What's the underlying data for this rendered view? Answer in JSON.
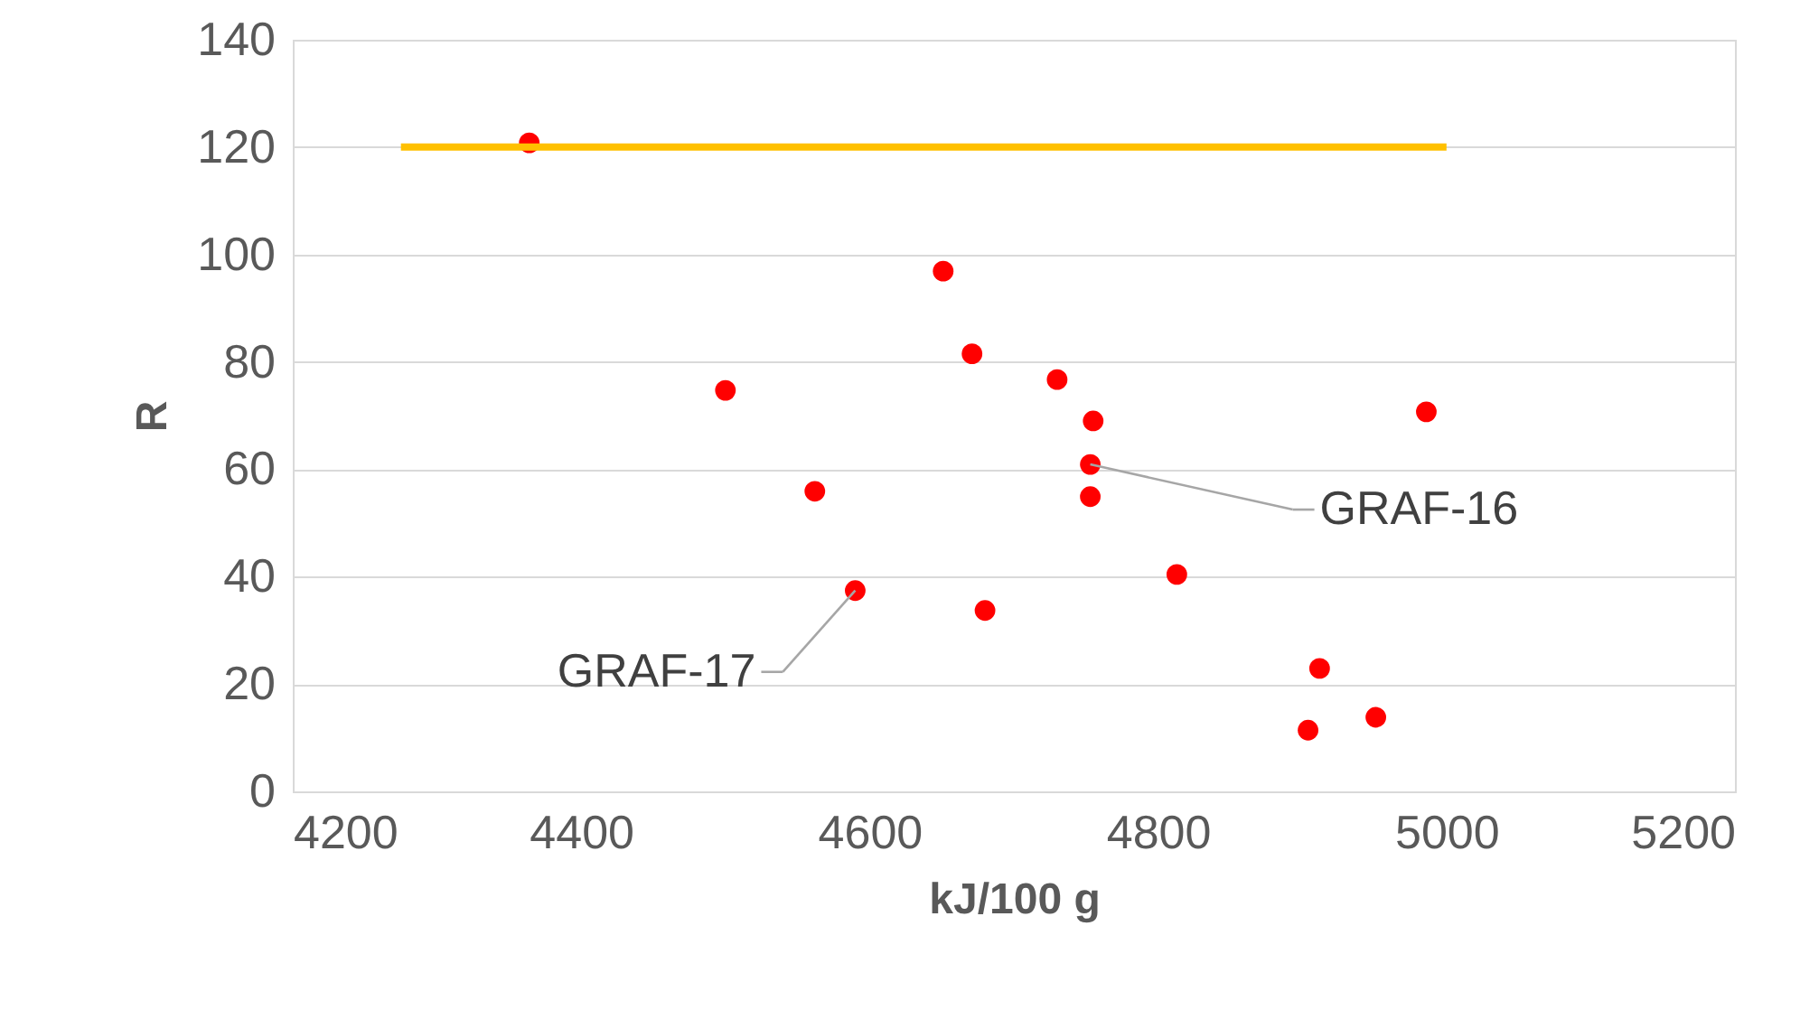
{
  "chart_data": {
    "type": "scatter",
    "xlabel": "kJ/100 g",
    "ylabel": "R",
    "x": [
      4364,
      4500,
      4562,
      4590,
      4651,
      4671,
      4680,
      4730,
      4755,
      4753,
      4753,
      4813,
      4904,
      4912,
      4951,
      4986
    ],
    "series": [
      {
        "color": "#ff0000",
        "marker": "circle",
        "values": [
          120.8,
          74.7,
          55.9,
          37.4,
          96.9,
          81.5,
          33.7,
          76.7,
          69.0,
          60.9,
          54.9,
          40.4,
          11.4,
          22.9,
          13.8,
          70.7
        ]
      },
      {
        "type": "line",
        "marker": "none",
        "color": "#ffc000",
        "x": [
          4275,
          5000
        ],
        "values": [
          120,
          120
        ]
      }
    ],
    "annotations": [
      {
        "text": "GRAF-16",
        "x": 4753,
        "y": 60.9
      },
      {
        "text": "GRAF-17",
        "x": 4590,
        "y": 37.4
      }
    ],
    "xlim": [
      4200,
      5200
    ],
    "xticks": [
      4200,
      4400,
      4600,
      4800,
      5000,
      5200
    ],
    "ylim": [
      0,
      140
    ],
    "yticks": [
      0,
      20,
      40,
      60,
      80,
      100,
      120,
      140
    ],
    "grid": "y",
    "line_style": "solid"
  }
}
